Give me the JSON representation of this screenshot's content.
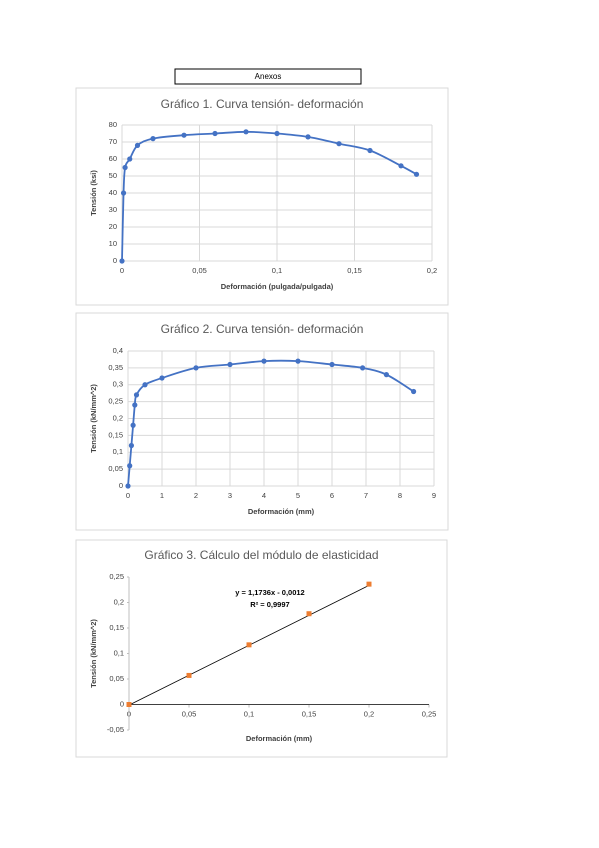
{
  "header": "Anexos",
  "chart_data": [
    {
      "type": "line",
      "title": "Gráfico 1. Curva tensión- deformación",
      "x_label": "Deformación (pulgada/pulgada)",
      "y_label": "Tensión (ksi)",
      "x": [
        0,
        0.001,
        0.002,
        0.005,
        0.01,
        0.02,
        0.04,
        0.06,
        0.08,
        0.1,
        0.12,
        0.14,
        0.16,
        0.18,
        0.19
      ],
      "values": [
        0,
        40,
        55,
        60,
        68,
        72,
        74,
        75,
        76,
        75,
        73,
        69,
        65,
        56,
        51
      ],
      "color": "#4472c4",
      "smooth": true,
      "xlim": [
        0,
        0.2
      ],
      "xticks": [
        0,
        {
          "value": 0.05,
          "label": "0,05"
        },
        {
          "value": 0.1,
          "label": "0,1"
        },
        {
          "value": 0.15,
          "label": "0,15"
        },
        {
          "value": 0.2,
          "label": "0,2"
        }
      ],
      "ylim": [
        0,
        80
      ],
      "yticks": [
        0,
        10,
        20,
        30,
        40,
        50,
        60,
        70,
        80
      ],
      "grid": true
    },
    {
      "type": "line",
      "title": "Gráfico 2. Curva tensión- deformación",
      "x_label": "Deformación (mm)",
      "y_label": "Tensión (kN/mm^2)",
      "x": [
        0,
        0.05,
        0.1,
        0.15,
        0.2,
        0.25,
        0.5,
        1,
        2,
        3,
        4,
        5,
        6,
        6.9,
        7.6,
        8.4
      ],
      "values": [
        0,
        0.06,
        0.12,
        0.18,
        0.24,
        0.27,
        0.3,
        0.32,
        0.35,
        0.36,
        0.37,
        0.37,
        0.36,
        0.35,
        0.33,
        0.28
      ],
      "color": "#4472c4",
      "smooth": true,
      "xlim": [
        0,
        9
      ],
      "xticks": [
        0,
        1,
        2,
        3,
        4,
        5,
        6,
        7,
        8,
        9
      ],
      "ylim": [
        0,
        0.4
      ],
      "yticks": [
        0,
        {
          "value": 0.05,
          "label": "0,05"
        },
        {
          "value": 0.1,
          "label": "0,1"
        },
        {
          "value": 0.15,
          "label": "0,15"
        },
        {
          "value": 0.2,
          "label": "0,2"
        },
        {
          "value": 0.25,
          "label": "0,25"
        },
        {
          "value": 0.3,
          "label": "0,3"
        },
        {
          "value": 0.35,
          "label": "0,35"
        },
        {
          "value": 0.4,
          "label": "0,4"
        }
      ],
      "grid": true
    },
    {
      "type": "scatter",
      "title": "Gráfico 3. Cálculo del módulo de elasticidad",
      "x_label": "Deformación (mm)",
      "y_label": "Tensión (kN/mm^2)",
      "x": [
        0,
        0.05,
        0.1,
        0.15,
        0.2
      ],
      "values": [
        0,
        0.057,
        0.117,
        0.178,
        0.236
      ],
      "color": "#ed7d31",
      "trendline": {
        "slope": 1.1736,
        "intercept": -0.0012,
        "label": "y = 1,1736x - 0,0012",
        "r2_label": "R² = 0,9997",
        "color": "#000000"
      },
      "xlim": [
        0,
        0.25
      ],
      "xticks": [
        0,
        {
          "value": 0.05,
          "label": "0,05"
        },
        {
          "value": 0.1,
          "label": "0,1"
        },
        {
          "value": 0.15,
          "label": "0,15"
        },
        {
          "value": 0.2,
          "label": "0,2"
        },
        {
          "value": 0.25,
          "label": "0,25"
        }
      ],
      "ylim": [
        -0.05,
        0.25
      ],
      "yticks": [
        {
          "value": -0.05,
          "label": "-0,05"
        },
        0,
        {
          "value": 0.05,
          "label": "0,05"
        },
        {
          "value": 0.1,
          "label": "0,1"
        },
        {
          "value": 0.15,
          "label": "0,15"
        },
        {
          "value": 0.2,
          "label": "0,2"
        },
        {
          "value": 0.25,
          "label": "0,25"
        }
      ],
      "grid": false
    }
  ]
}
